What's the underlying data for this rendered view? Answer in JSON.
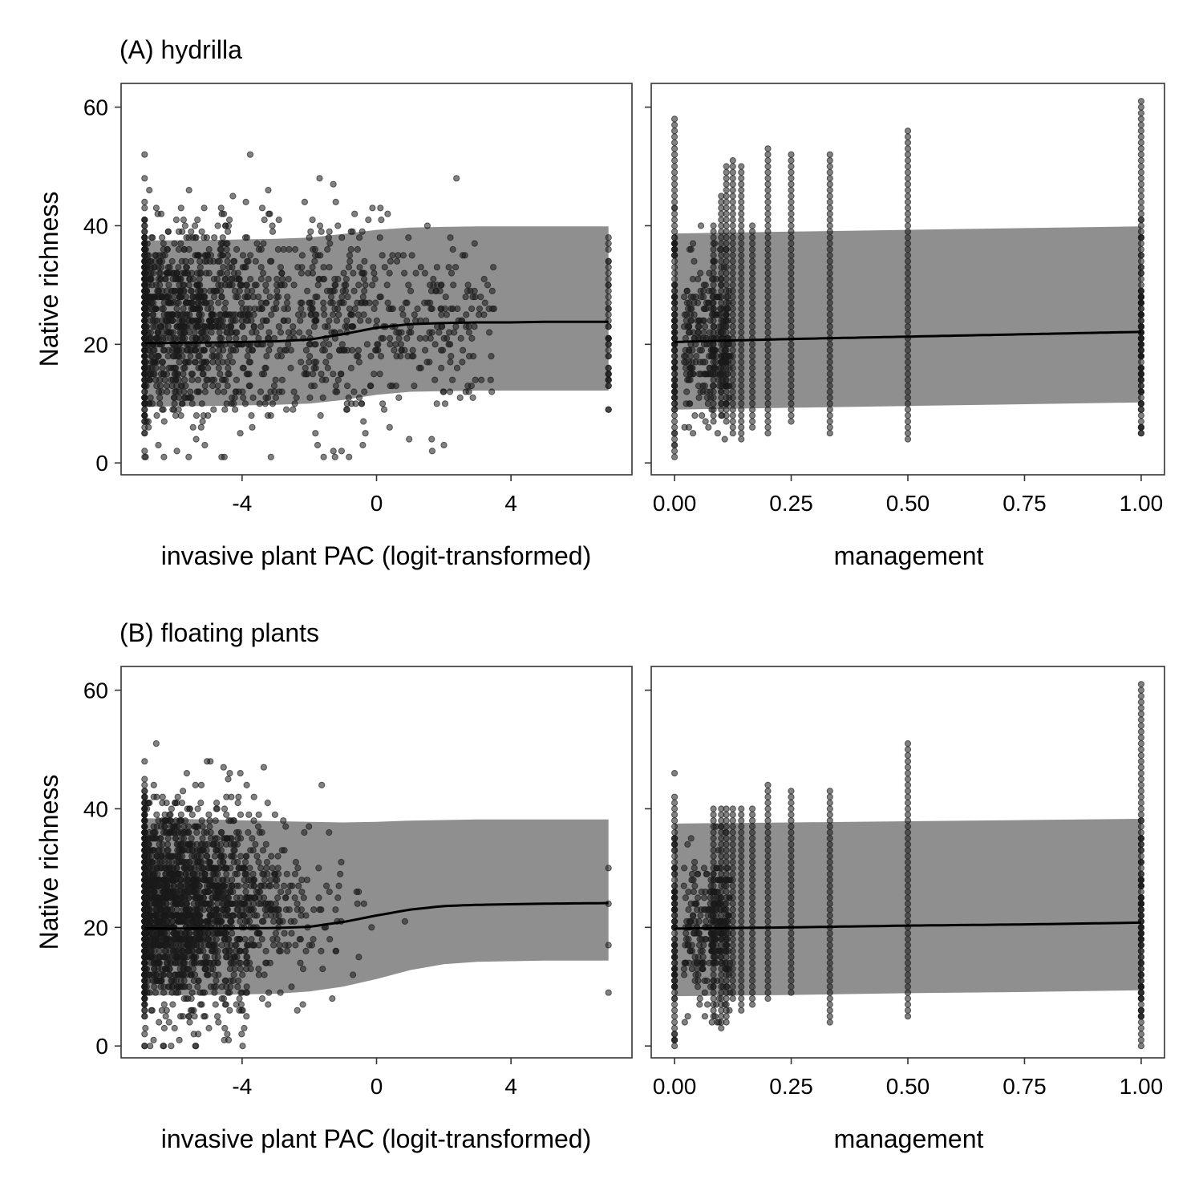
{
  "colors": {
    "points": "#1a1a1a",
    "band": "#8f8f8f",
    "line": "#000000",
    "frame": "#333333"
  },
  "chart_data": [
    {
      "type": "scatter",
      "title": "(A) hydrilla",
      "xlabel": "invasive plant PAC (logit-transformed)",
      "ylabel": "Native richness",
      "xlim": [
        -7.6,
        7.6
      ],
      "ylim": [
        -2,
        64
      ],
      "x_ticks": [
        -4,
        0,
        4
      ],
      "x_tick_labels": [
        "-4",
        "0",
        "4"
      ],
      "y_ticks": [
        0,
        20,
        40,
        60
      ],
      "y_tick_labels": [
        "0",
        "20",
        "40",
        "60"
      ],
      "grid": false,
      "points_model": {
        "n": 1700,
        "x_range": [
          -6.9,
          6.9
        ],
        "x_mode": -5.5,
        "y_mean": 24,
        "y_sd": 8.5,
        "y_range": [
          1,
          61
        ],
        "high_x_points": 40
      },
      "fit": {
        "x": [
          -6.9,
          -5,
          -3,
          -2,
          -1,
          0,
          1,
          2,
          3,
          4,
          5,
          6.9
        ],
        "y": [
          20.2,
          20.3,
          20.5,
          20.8,
          21.7,
          22.8,
          23.4,
          23.6,
          23.7,
          23.7,
          23.8,
          23.8
        ],
        "lower": [
          9.5,
          9.6,
          9.8,
          10.0,
          10.6,
          11.5,
          12.0,
          12.1,
          12.2,
          12.2,
          12.2,
          12.2
        ],
        "upper": [
          37.5,
          37.6,
          37.8,
          38.0,
          38.6,
          39.3,
          39.7,
          39.8,
          39.9,
          39.9,
          39.9,
          39.9
        ]
      }
    },
    {
      "type": "scatter",
      "title": "",
      "xlabel": "management",
      "ylabel": "",
      "xlim": [
        -0.05,
        1.05
      ],
      "ylim": [
        -2,
        64
      ],
      "x_ticks": [
        0,
        0.25,
        0.5,
        0.75,
        1
      ],
      "x_tick_labels": [
        "0.00",
        "0.25",
        "0.50",
        "0.75",
        "1.00"
      ],
      "y_ticks": [
        0,
        20,
        40,
        60
      ],
      "grid": false,
      "points_model": {
        "columns": [
          0,
          0.0833,
          0.1,
          0.111,
          0.125,
          0.143,
          0.1667,
          0.2,
          0.25,
          0.333,
          0.5,
          1
        ],
        "column_ranges": [
          [
            1,
            58
          ],
          [
            7,
            40
          ],
          [
            8,
            45
          ],
          [
            7,
            50
          ],
          [
            5,
            51
          ],
          [
            4,
            50
          ],
          [
            6,
            40
          ],
          [
            5,
            53
          ],
          [
            7,
            52
          ],
          [
            5,
            52
          ],
          [
            4,
            56
          ],
          [
            5,
            61
          ]
        ],
        "scatter_zone": [
          0.02,
          0.12
        ],
        "y_mean": 22,
        "y_sd": 8.5
      },
      "fit": {
        "x": [
          0,
          0.25,
          0.5,
          0.75,
          1
        ],
        "y": [
          20.4,
          20.9,
          21.3,
          21.7,
          22.1
        ],
        "lower": [
          9.0,
          9.3,
          9.6,
          9.9,
          10.2
        ],
        "upper": [
          38.7,
          39.0,
          39.3,
          39.6,
          39.9
        ]
      }
    },
    {
      "type": "scatter",
      "title": "(B) floating plants",
      "xlabel": "invasive plant PAC (logit-transformed)",
      "ylabel": "Native richness",
      "xlim": [
        -7.6,
        7.6
      ],
      "ylim": [
        -2,
        64
      ],
      "x_ticks": [
        -4,
        0,
        4
      ],
      "x_tick_labels": [
        "-4",
        "0",
        "4"
      ],
      "y_ticks": [
        0,
        20,
        40,
        60
      ],
      "y_tick_labels": [
        "0",
        "20",
        "40",
        "60"
      ],
      "grid": false,
      "points_model": {
        "n": 2200,
        "x_range": [
          -6.9,
          6.9
        ],
        "x_mode": -6.9,
        "y_mean": 23,
        "y_sd": 8.5,
        "y_range": [
          0,
          61
        ],
        "high_x_points": 4
      },
      "fit": {
        "x": [
          -6.9,
          -5,
          -3,
          -2,
          -1,
          0,
          1,
          2,
          3,
          4,
          5,
          6.9
        ],
        "y": [
          19.8,
          19.8,
          19.9,
          20.1,
          20.9,
          22.0,
          23.0,
          23.6,
          23.8,
          23.9,
          24.0,
          24.1
        ],
        "lower": [
          8.5,
          8.6,
          8.8,
          9.2,
          10.0,
          11.3,
          12.8,
          13.8,
          14.2,
          14.3,
          14.4,
          14.4
        ],
        "upper": [
          38.4,
          38.2,
          37.9,
          37.8,
          37.7,
          37.8,
          38.0,
          38.1,
          38.2,
          38.2,
          38.2,
          38.2
        ]
      }
    },
    {
      "type": "scatter",
      "title": "",
      "xlabel": "management",
      "ylabel": "",
      "xlim": [
        -0.05,
        1.05
      ],
      "ylim": [
        -2,
        64
      ],
      "x_ticks": [
        0,
        0.25,
        0.5,
        0.75,
        1
      ],
      "x_tick_labels": [
        "0.00",
        "0.25",
        "0.50",
        "0.75",
        "1.00"
      ],
      "y_ticks": [
        0,
        20,
        40,
        60
      ],
      "grid": false,
      "points_model": {
        "columns": [
          0,
          0.0833,
          0.1,
          0.111,
          0.125,
          0.143,
          0.1667,
          0.2,
          0.25,
          0.333,
          0.5,
          1
        ],
        "column_ranges": [
          [
            0,
            41
          ],
          [
            5,
            40
          ],
          [
            3,
            40
          ],
          [
            4,
            40
          ],
          [
            8,
            40
          ],
          [
            6,
            40
          ],
          [
            7,
            40
          ],
          [
            8,
            44
          ],
          [
            9,
            43
          ],
          [
            4,
            43
          ],
          [
            5,
            51
          ],
          [
            0,
            61
          ]
        ],
        "scatter_zone": [
          0.02,
          0.12
        ],
        "y_mean": 21,
        "y_sd": 8.5
      },
      "fit": {
        "x": [
          0,
          0.25,
          0.5,
          0.75,
          1
        ],
        "y": [
          19.8,
          20.0,
          20.3,
          20.5,
          20.8
        ],
        "lower": [
          8.4,
          8.6,
          8.9,
          9.1,
          9.4
        ],
        "upper": [
          37.5,
          37.7,
          37.9,
          38.1,
          38.3
        ]
      }
    }
  ]
}
